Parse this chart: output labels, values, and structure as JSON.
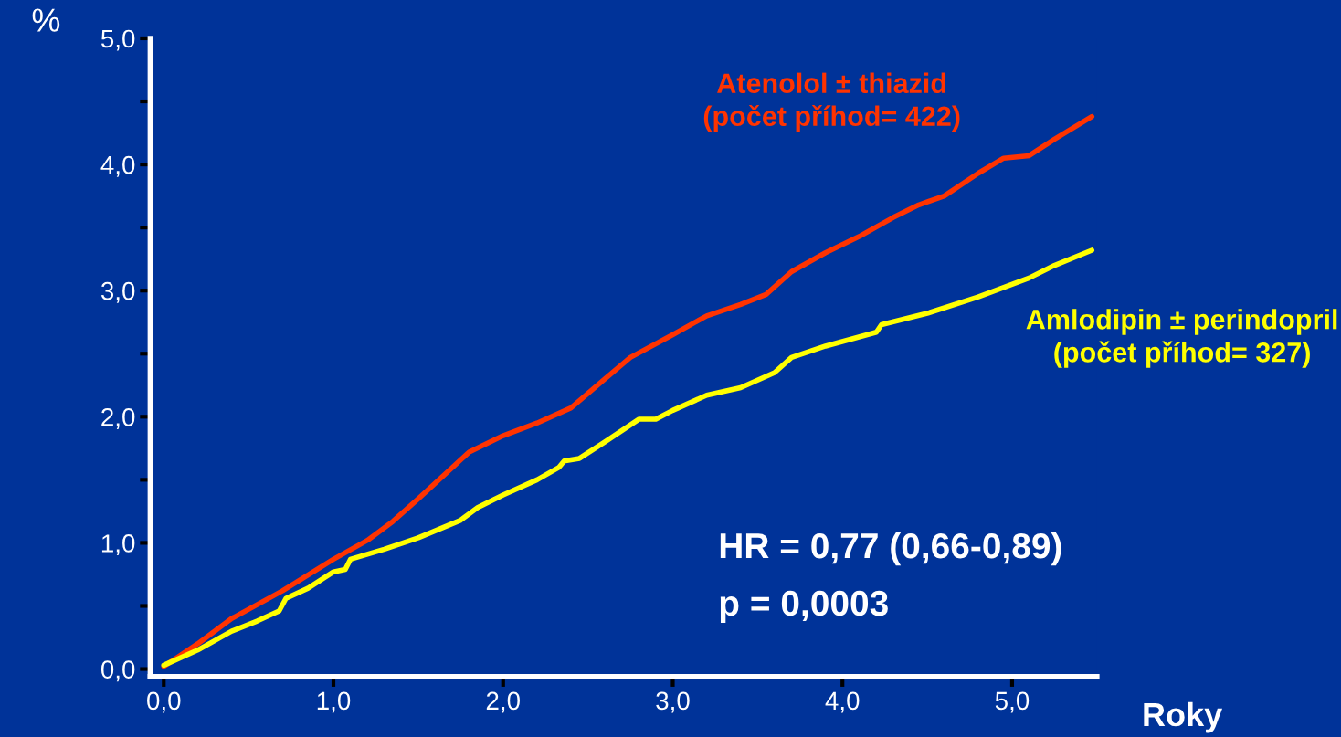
{
  "chart_data": {
    "type": "line",
    "xlabel": "Roky",
    "ylabel": "%",
    "xlim": [
      -0.08,
      5.5
    ],
    "ylim": [
      -0.06,
      5.0
    ],
    "xticks": [
      {
        "value": 0,
        "label": "0,0"
      },
      {
        "value": 1,
        "label": "1,0"
      },
      {
        "value": 2,
        "label": "2,0"
      },
      {
        "value": 3,
        "label": "3,0"
      },
      {
        "value": 4,
        "label": "4,0"
      },
      {
        "value": 5,
        "label": "5,0"
      }
    ],
    "yticks": [
      {
        "value": 0,
        "label": "0,0"
      },
      {
        "value": 0.5,
        "label": null
      },
      {
        "value": 1,
        "label": "1,0"
      },
      {
        "value": 1.5,
        "label": null
      },
      {
        "value": 2,
        "label": "2,0"
      },
      {
        "value": 2.5,
        "label": null
      },
      {
        "value": 3,
        "label": "3,0"
      },
      {
        "value": 3.5,
        "label": null
      },
      {
        "value": 4,
        "label": "4,0"
      },
      {
        "value": 4.5,
        "label": null
      },
      {
        "value": 5,
        "label": "5,0"
      }
    ],
    "grid": false,
    "legend": false,
    "marker": "none",
    "line_style": "solid",
    "series": [
      {
        "name": "Atenolol ± thiazid\n(počet příhod= 422)",
        "color": "#ff3300",
        "x": [
          0,
          0.2,
          0.4,
          0.7,
          1.0,
          1.2,
          1.35,
          1.5,
          1.8,
          2.0,
          2.2,
          2.4,
          2.6,
          2.75,
          3.0,
          3.2,
          3.4,
          3.55,
          3.7,
          3.9,
          4.1,
          4.3,
          4.45,
          4.6,
          4.8,
          4.95,
          5.1,
          5.25,
          5.47
        ],
        "values": [
          0.02,
          0.2,
          0.4,
          0.62,
          0.87,
          1.02,
          1.17,
          1.35,
          1.72,
          1.85,
          1.95,
          2.07,
          2.3,
          2.47,
          2.65,
          2.8,
          2.89,
          2.97,
          3.15,
          3.3,
          3.43,
          3.58,
          3.68,
          3.75,
          3.93,
          4.05,
          4.07,
          4.2,
          4.38
        ]
      },
      {
        "name": "Amlodipin ± perindopril\n(počet příhod= 327)",
        "color": "#ffff00",
        "x": [
          0,
          0.2,
          0.4,
          0.55,
          0.68,
          0.72,
          0.85,
          1.0,
          1.07,
          1.1,
          1.3,
          1.5,
          1.75,
          1.85,
          2.0,
          2.2,
          2.33,
          2.36,
          2.45,
          2.6,
          2.8,
          2.9,
          3.0,
          3.2,
          3.4,
          3.6,
          3.7,
          3.9,
          4.2,
          4.23,
          4.5,
          4.8,
          5.1,
          5.25,
          5.47
        ],
        "values": [
          0.03,
          0.15,
          0.3,
          0.38,
          0.46,
          0.56,
          0.64,
          0.77,
          0.79,
          0.87,
          0.95,
          1.04,
          1.18,
          1.28,
          1.38,
          1.5,
          1.6,
          1.65,
          1.67,
          1.8,
          1.98,
          1.98,
          2.05,
          2.17,
          2.23,
          2.35,
          2.47,
          2.56,
          2.67,
          2.73,
          2.82,
          2.95,
          3.1,
          3.2,
          3.32
        ]
      }
    ],
    "annotations": [
      "HR = 0,77 (0,66-0,89)",
      "p = 0,0003"
    ]
  }
}
